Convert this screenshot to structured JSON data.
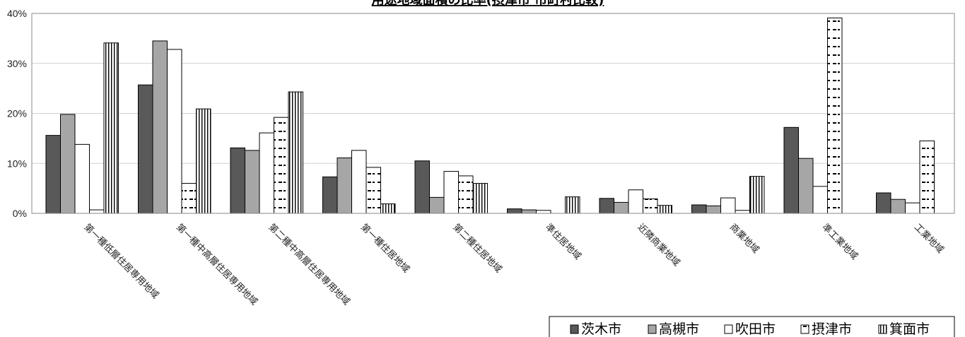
{
  "chart_data": {
    "type": "bar",
    "title": "用途地域面積の比率(摂津市 市町村比較)",
    "categories": [
      "第一種低層住居専用地域",
      "第一種中高層住居専用地域",
      "第二種中高層住居専用地域",
      "第一種住居地域",
      "第二種住居地域",
      "準住居地域",
      "近隣商業地域",
      "商業地域",
      "準工業地域",
      "工業地域"
    ],
    "series": [
      {
        "name": "茨木市",
        "values": [
          15.6,
          25.7,
          13.1,
          7.3,
          10.5,
          0.9,
          3.0,
          1.7,
          17.2,
          4.1
        ],
        "fill": "#595959",
        "pattern": "solid"
      },
      {
        "name": "高槻市",
        "values": [
          19.8,
          34.5,
          12.6,
          11.1,
          3.2,
          0.7,
          2.2,
          1.5,
          11.0,
          2.8
        ],
        "fill": "#a6a6a6",
        "pattern": "solid"
      },
      {
        "name": "吹田市",
        "values": [
          13.8,
          32.8,
          16.1,
          12.6,
          8.4,
          0.6,
          4.7,
          3.1,
          5.4,
          2.1
        ],
        "fill": "#ffffff",
        "pattern": "solid"
      },
      {
        "name": "摂津市",
        "values": [
          0.7,
          6.0,
          19.2,
          9.2,
          7.5,
          0.0,
          2.9,
          0.6,
          39.1,
          14.5
        ],
        "fill": "#ffffff",
        "pattern": "dashes"
      },
      {
        "name": "箕面市",
        "values": [
          34.1,
          20.9,
          24.3,
          1.9,
          6.0,
          3.3,
          1.6,
          7.4,
          0.0,
          0.0
        ],
        "fill": "#ffffff",
        "pattern": "vstripes"
      }
    ],
    "y_ticks": [
      "0%",
      "10%",
      "20%",
      "30%",
      "40%"
    ],
    "ylim": [
      0,
      40
    ],
    "grid": true,
    "legend_position": "bottom-right"
  }
}
